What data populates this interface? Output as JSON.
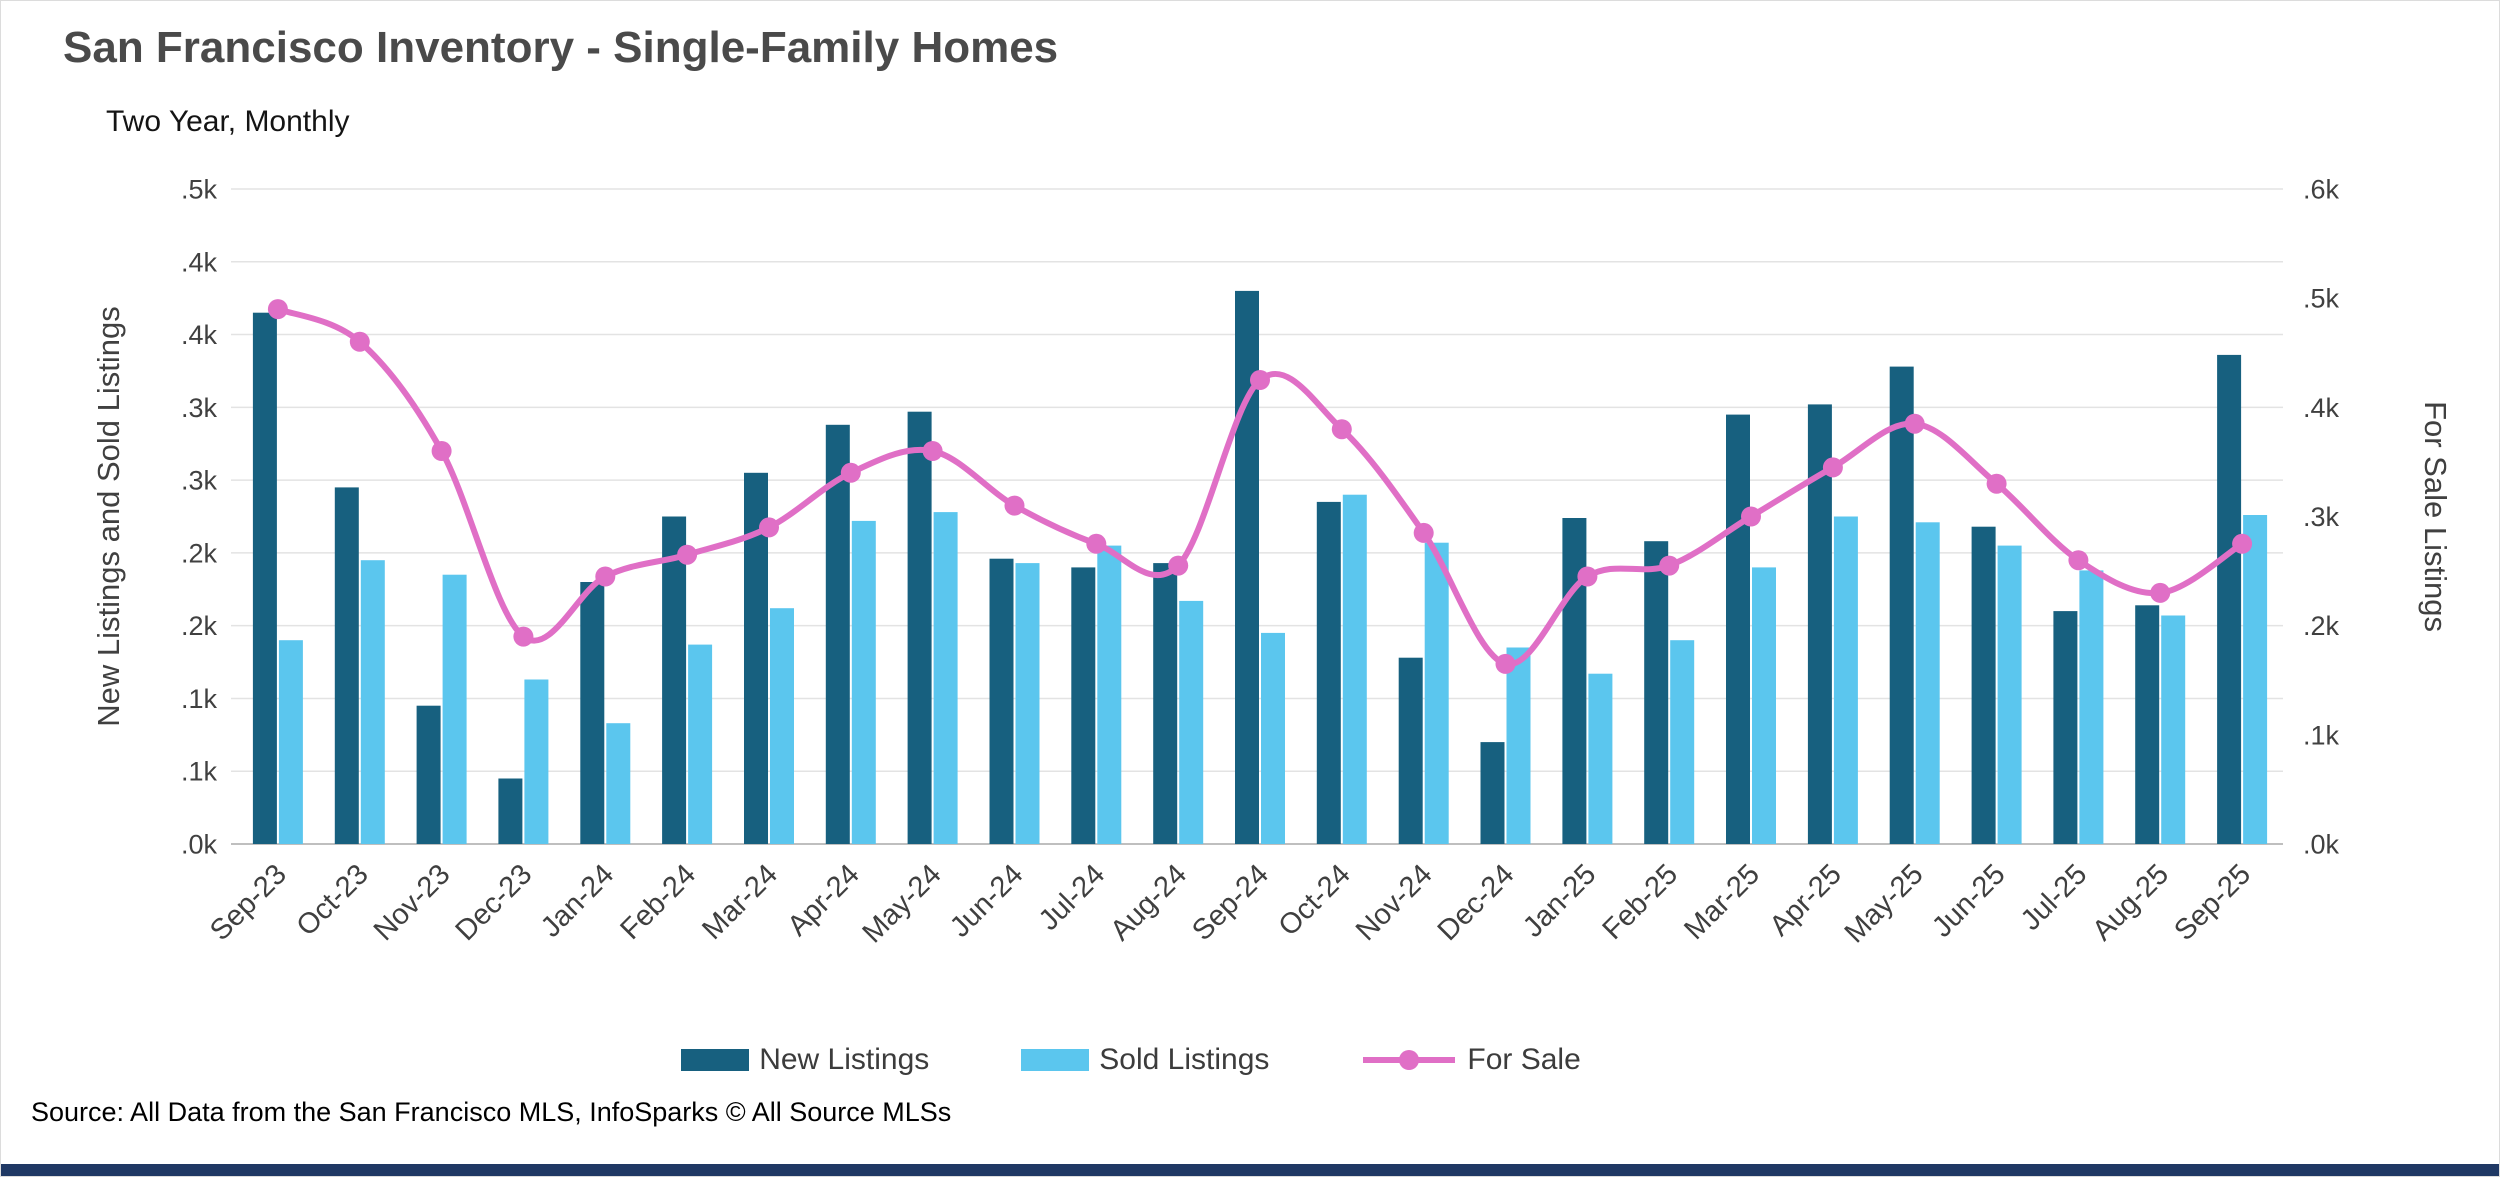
{
  "page": {
    "title": "San Francisco Inventory - Single-Family Homes",
    "subtitle": "Two Year, Monthly",
    "source": "Source: All Data from the San Francisco MLS, InfoSparks © All Source MLSs"
  },
  "legend": {
    "new_listings": "New Listings",
    "sold_listings": "Sold Listings",
    "for_sale": "For Sale"
  },
  "colors": {
    "new_listings": "#17607F",
    "sold_listings": "#5BC6EE",
    "for_sale": "#E06FC6",
    "grid": "#E3E3E3",
    "axis_line": "#BFBFBF",
    "bottom_bar": "#1F3864",
    "axis_text": "#404040"
  },
  "chart_data": {
    "type": "bar",
    "subtype": "grouped bars with overlaid line (dual axis)",
    "title": "San Francisco Inventory - Single-Family Homes",
    "subtitle": "Two Year, Monthly",
    "categories": [
      "Sep-23",
      "Oct-23",
      "Nov-23",
      "Dec-23",
      "Jan-24",
      "Feb-24",
      "Mar-24",
      "Apr-24",
      "May-24",
      "Jun-24",
      "Jul-24",
      "Aug-24",
      "Sep-24",
      "Oct-24",
      "Nov-24",
      "Dec-24",
      "Jan-25",
      "Feb-25",
      "Mar-25",
      "Apr-25",
      "May-25",
      "Jun-25",
      "Jul-25",
      "Aug-25",
      "Sep-25"
    ],
    "series": [
      {
        "name": "New Listings",
        "render": "bar",
        "axis": "left",
        "values": [
          365,
          245,
          95,
          45,
          180,
          225,
          255,
          288,
          297,
          196,
          190,
          193,
          380,
          235,
          128,
          70,
          224,
          208,
          295,
          302,
          328,
          218,
          160,
          164,
          336
        ]
      },
      {
        "name": "Sold Listings",
        "render": "bar",
        "axis": "left",
        "values": [
          140,
          195,
          185,
          113,
          83,
          137,
          162,
          222,
          228,
          193,
          205,
          167,
          145,
          240,
          207,
          135,
          117,
          140,
          190,
          225,
          221,
          205,
          188,
          157,
          226
        ]
      },
      {
        "name": "For Sale",
        "render": "line",
        "axis": "right",
        "values": [
          490,
          460,
          360,
          190,
          245,
          265,
          290,
          340,
          360,
          310,
          275,
          255,
          425,
          380,
          285,
          165,
          245,
          255,
          300,
          345,
          385,
          330,
          260,
          230,
          275
        ]
      }
    ],
    "left_axis": {
      "label": "New Listings and Sold Listings",
      "min": 0,
      "max": 450,
      "tick_step": 50,
      "tick_labels_top_to_bottom": [
        ".5k",
        ".4k",
        ".4k",
        ".3k",
        ".3k",
        ".2k",
        ".2k",
        ".1k",
        ".1k",
        ".0k"
      ]
    },
    "right_axis": {
      "label": "For Sale Listings",
      "min": 0,
      "max": 600,
      "tick_step": 100,
      "tick_labels_top_to_bottom": [
        ".6k",
        ".5k",
        ".4k",
        ".3k",
        ".2k",
        ".1k",
        ".0k"
      ]
    },
    "grid": true,
    "legend_position": "bottom",
    "x_label_rotation_deg": -45
  }
}
